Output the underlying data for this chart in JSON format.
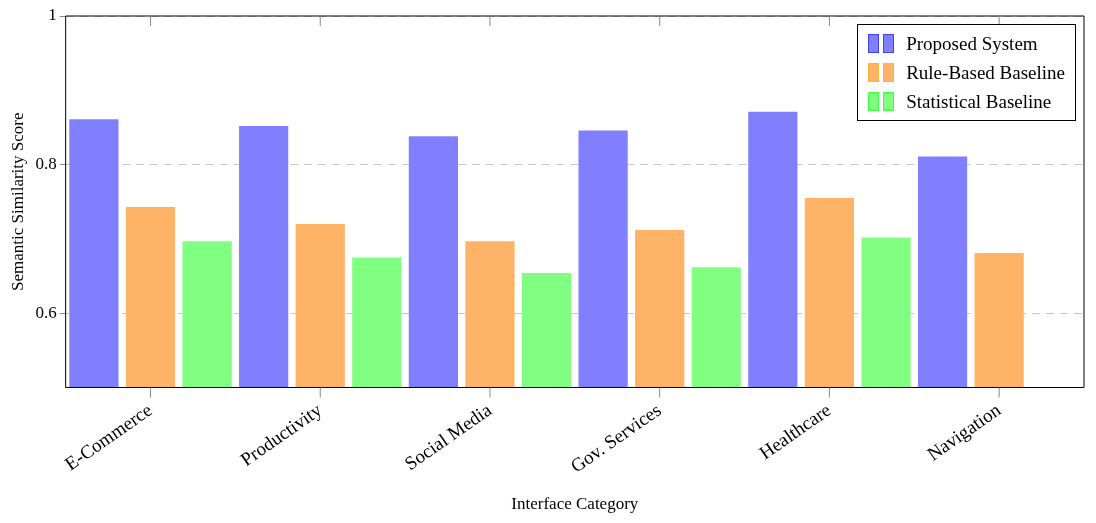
{
  "chart_data": {
    "type": "bar",
    "xlabel": "Interface Category",
    "ylabel": "Semantic Similarity Score",
    "categories": [
      "E-Commerce",
      "Productivity",
      "Social Media",
      "Gov. Services",
      "Healthcare",
      "Navigation"
    ],
    "series": [
      {
        "name": "Proposed System",
        "color": "#8080ff",
        "values": [
          0.861,
          0.852,
          0.838,
          0.846,
          0.871,
          0.811
        ]
      },
      {
        "name": "Rule-Based Baseline",
        "color": "#ffb366",
        "values": [
          0.743,
          0.72,
          0.697,
          0.712,
          0.755,
          0.681
        ]
      },
      {
        "name": "Statistical Baseline",
        "color": "#80ff80",
        "values": [
          0.697,
          0.675,
          0.654,
          0.662,
          0.702,
          null
        ]
      }
    ],
    "ylim": [
      0.5,
      1
    ],
    "yticks": [
      0.6,
      0.8,
      1
    ],
    "grid": "y",
    "legend": "top right"
  }
}
